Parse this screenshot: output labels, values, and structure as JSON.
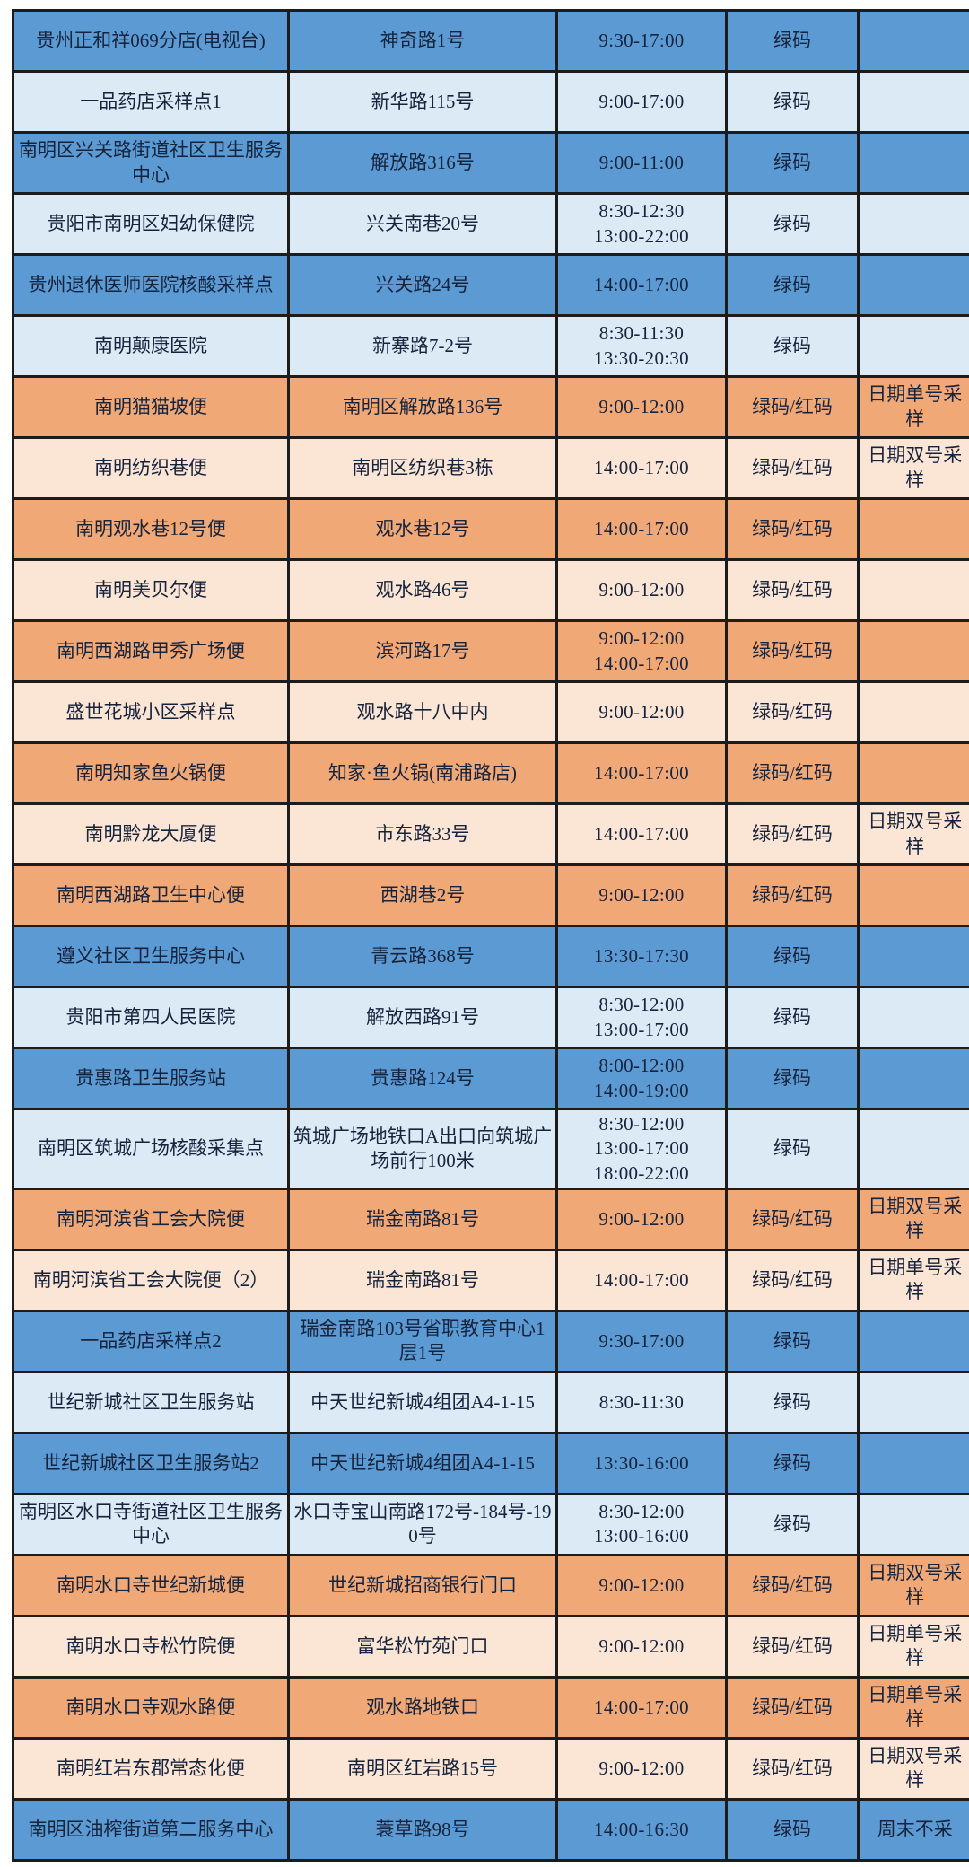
{
  "colors": {
    "row_blue": "#5b9ad3",
    "row_blue_light": "#dceaf6",
    "row_orange": "#f0a877",
    "row_orange_light": "#fbe5d5",
    "border": "#1c1c1c",
    "text": "#16233c",
    "page_background": "#ffffff"
  },
  "chart_data": {
    "type": "table",
    "title": "",
    "legend_position": "none",
    "grid": "on",
    "rows": [
      {
        "theme": "blue",
        "name": "贵州正和祥069分店(电视台)",
        "address": "神奇路1号",
        "times": [
          "9:30-17:00"
        ],
        "code": "绿码",
        "note": ""
      },
      {
        "theme": "blueLight",
        "name": "一品药店采样点1",
        "address": "新华路115号",
        "times": [
          "9:00-17:00"
        ],
        "code": "绿码",
        "note": ""
      },
      {
        "theme": "blue",
        "name": "南明区兴关路街道社区卫生服务中心",
        "address": "解放路316号",
        "times": [
          "9:00-11:00"
        ],
        "code": "绿码",
        "note": ""
      },
      {
        "theme": "blueLight",
        "name": "贵阳市南明区妇幼保健院",
        "address": "兴关南巷20号",
        "times": [
          "8:30-12:30",
          "13:00-22:00"
        ],
        "code": "绿码",
        "note": ""
      },
      {
        "theme": "blue",
        "name": "贵州退休医师医院核酸采样点",
        "address": "兴关路24号",
        "times": [
          "14:00-17:00"
        ],
        "code": "绿码",
        "note": ""
      },
      {
        "theme": "blueLight",
        "name": "南明颠康医院",
        "address": "新寨路7-2号",
        "times": [
          "8:30-11:30",
          "13:30-20:30"
        ],
        "code": "绿码",
        "note": ""
      },
      {
        "theme": "orange",
        "name": "南明猫猫坡便",
        "address": "南明区解放路136号",
        "times": [
          "9:00-12:00"
        ],
        "code": "绿码/红码",
        "note": "日期单号采样"
      },
      {
        "theme": "orangeLight",
        "name": "南明纺织巷便",
        "address": "南明区纺织巷3栋",
        "times": [
          "14:00-17:00"
        ],
        "code": "绿码/红码",
        "note": "日期双号采样"
      },
      {
        "theme": "orange",
        "name": "南明观水巷12号便",
        "address": "观水巷12号",
        "times": [
          "14:00-17:00"
        ],
        "code": "绿码/红码",
        "note": ""
      },
      {
        "theme": "orangeLight",
        "name": "南明美贝尔便",
        "address": "观水路46号",
        "times": [
          "9:00-12:00"
        ],
        "code": "绿码/红码",
        "note": ""
      },
      {
        "theme": "orange",
        "name": "南明西湖路甲秀广场便",
        "address": "滨河路17号",
        "times": [
          "9:00-12:00",
          "14:00-17:00"
        ],
        "code": "绿码/红码",
        "note": ""
      },
      {
        "theme": "orangeLight",
        "name": "盛世花城小区采样点",
        "address": "观水路十八中内",
        "times": [
          "9:00-12:00"
        ],
        "code": "绿码/红码",
        "note": ""
      },
      {
        "theme": "orange",
        "name": "南明知家鱼火锅便",
        "address": "知家·鱼火锅(南浦路店)",
        "times": [
          "14:00-17:00"
        ],
        "code": "绿码/红码",
        "note": ""
      },
      {
        "theme": "orangeLight",
        "name": "南明黔龙大厦便",
        "address": "市东路33号",
        "times": [
          "14:00-17:00"
        ],
        "code": "绿码/红码",
        "note": "日期双号采样"
      },
      {
        "theme": "orange",
        "name": "南明西湖路卫生中心便",
        "address": "西湖巷2号",
        "times": [
          "9:00-12:00"
        ],
        "code": "绿码/红码",
        "note": ""
      },
      {
        "theme": "blue",
        "name": "遵义社区卫生服务中心",
        "address": "青云路368号",
        "times": [
          "13:30-17:30"
        ],
        "code": "绿码",
        "note": ""
      },
      {
        "theme": "blueLight",
        "name": "贵阳市第四人民医院",
        "address": "解放西路91号",
        "times": [
          "8:30-12:00",
          "13:00-17:00"
        ],
        "code": "绿码",
        "note": ""
      },
      {
        "theme": "blue",
        "name": "贵惠路卫生服务站",
        "address": "贵惠路124号",
        "times": [
          "8:00-12:00",
          "14:00-19:00"
        ],
        "code": "绿码",
        "note": ""
      },
      {
        "theme": "blueLight",
        "name": "南明区筑城广场核酸采集点",
        "address": "筑城广场地铁口A出口向筑城广场前行100米",
        "times": [
          "8:30-12:00",
          "13:00-17:00",
          "18:00-22:00"
        ],
        "code": "绿码",
        "note": ""
      },
      {
        "theme": "orange",
        "name": "南明河滨省工会大院便",
        "address": "瑞金南路81号",
        "times": [
          "9:00-12:00"
        ],
        "code": "绿码/红码",
        "note": "日期双号采样"
      },
      {
        "theme": "orangeLight",
        "name": "南明河滨省工会大院便（2）",
        "address": "瑞金南路81号",
        "times": [
          "14:00-17:00"
        ],
        "code": "绿码/红码",
        "note": "日期单号采样"
      },
      {
        "theme": "blue",
        "name": "一品药店采样点2",
        "address": "瑞金南路103号省职教育中心1层1号",
        "times": [
          "9:30-17:00"
        ],
        "code": "绿码",
        "note": ""
      },
      {
        "theme": "blueLight",
        "name": "世纪新城社区卫生服务站",
        "address": "中天世纪新城4组团A4-1-15",
        "times": [
          "8:30-11:30"
        ],
        "code": "绿码",
        "note": ""
      },
      {
        "theme": "blue",
        "name": "世纪新城社区卫生服务站2",
        "address": "中天世纪新城4组团A4-1-15",
        "times": [
          "13:30-16:00"
        ],
        "code": "绿码",
        "note": ""
      },
      {
        "theme": "blueLight",
        "name": "南明区水口寺街道社区卫生服务中心",
        "address": "水口寺宝山南路172号-184号-190号",
        "times": [
          "8:30-12:00",
          "13:00-16:00"
        ],
        "code": "绿码",
        "note": ""
      },
      {
        "theme": "orange",
        "name": "南明水口寺世纪新城便",
        "address": "世纪新城招商银行门口",
        "times": [
          "9:00-12:00"
        ],
        "code": "绿码/红码",
        "note": "日期双号采样"
      },
      {
        "theme": "orangeLight",
        "name": "南明水口寺松竹院便",
        "address": "富华松竹苑门口",
        "times": [
          "9:00-12:00"
        ],
        "code": "绿码/红码",
        "note": "日期单号采样"
      },
      {
        "theme": "orange",
        "name": "南明水口寺观水路便",
        "address": "观水路地铁口",
        "times": [
          "14:00-17:00"
        ],
        "code": "绿码/红码",
        "note": "日期单号采样"
      },
      {
        "theme": "orangeLight",
        "name": "南明红岩东郡常态化便",
        "address": "南明区红岩路15号",
        "times": [
          "9:00-12:00"
        ],
        "code": "绿码/红码",
        "note": "日期双号采样"
      },
      {
        "theme": "blue",
        "name": "南明区油榨街道第二服务中心",
        "address": "蓑草路98号",
        "times": [
          "14:00-16:30"
        ],
        "code": "绿码",
        "note": "周末不采"
      }
    ]
  }
}
